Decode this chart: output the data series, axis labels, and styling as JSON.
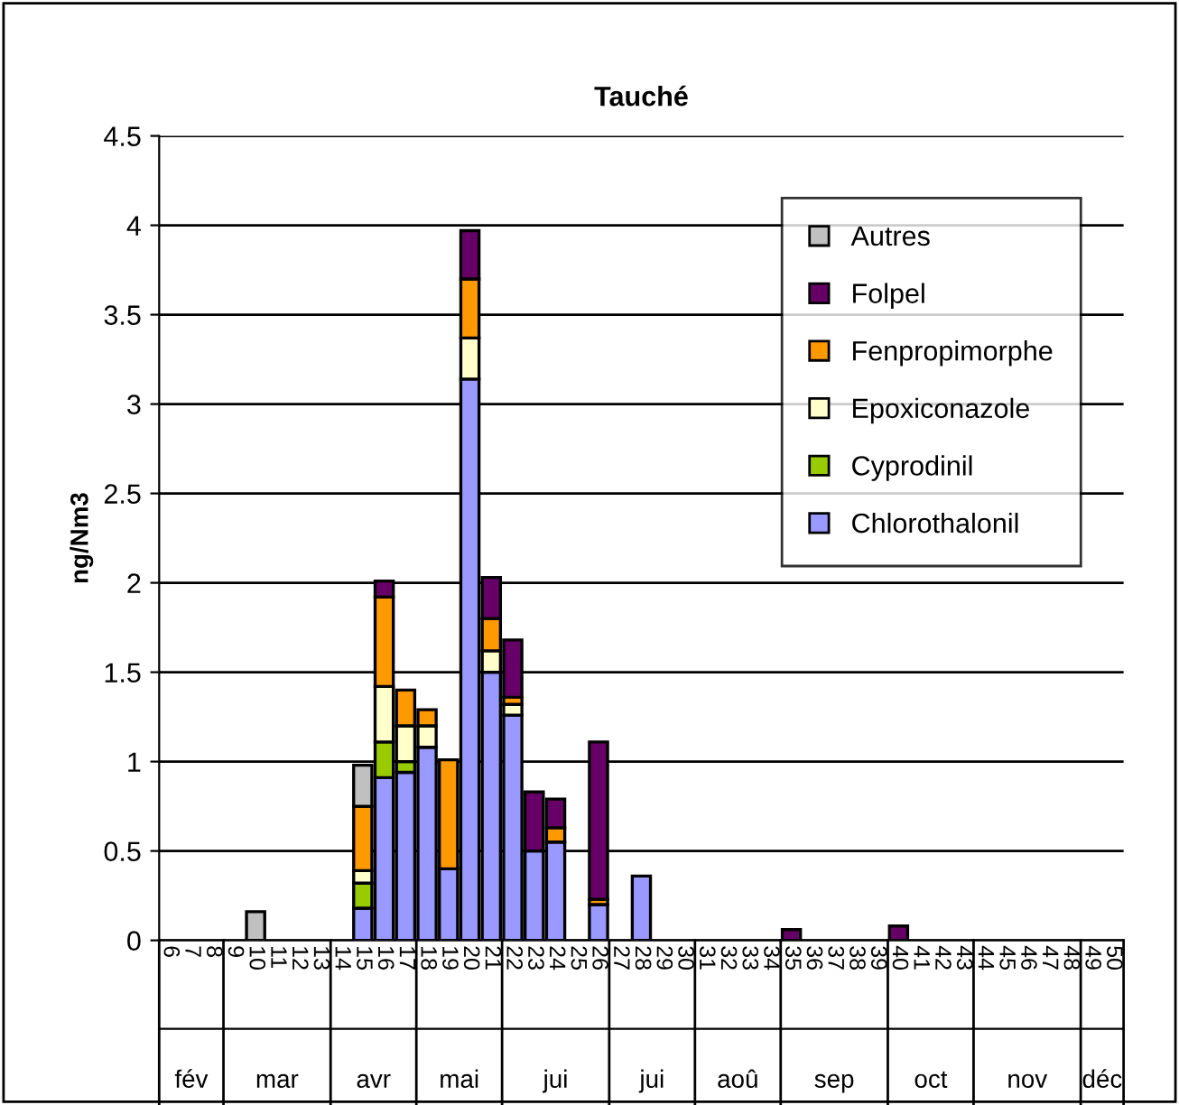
{
  "chart_data": {
    "type": "bar",
    "stacked": true,
    "title": "Tauché",
    "ylabel": "ng/Nm3",
    "categories": [
      "6",
      "7",
      "8",
      "9",
      "10",
      "11",
      "12",
      "13",
      "14",
      "15",
      "16",
      "17",
      "18",
      "19",
      "20",
      "21",
      "22",
      "23",
      "24",
      "25",
      "26",
      "27",
      "28",
      "29",
      "30",
      "31",
      "32",
      "33",
      "34",
      "35",
      "36",
      "37",
      "38",
      "39",
      "40",
      "41",
      "42",
      "43",
      "44",
      "45",
      "46",
      "47",
      "48",
      "49",
      "50"
    ],
    "series": [
      {
        "name": "Chlorothalonil",
        "color": "#9999ff",
        "values": [
          null,
          null,
          null,
          null,
          null,
          null,
          null,
          null,
          null,
          0.18,
          0.91,
          0.94,
          1.08,
          0.4,
          3.14,
          1.5,
          1.26,
          0.5,
          0.55,
          null,
          0.2,
          null,
          0.36,
          null,
          null,
          null,
          null,
          null,
          null,
          null,
          null,
          null,
          null,
          null,
          null,
          null,
          null,
          null,
          null,
          null,
          null,
          null,
          null,
          null,
          null
        ]
      },
      {
        "name": "Cyprodinil",
        "color": "#99cc00",
        "values": [
          null,
          null,
          null,
          null,
          null,
          null,
          null,
          null,
          null,
          0.14,
          0.2,
          0.06,
          null,
          null,
          null,
          null,
          null,
          null,
          null,
          null,
          null,
          null,
          null,
          null,
          null,
          null,
          null,
          null,
          null,
          null,
          null,
          null,
          null,
          null,
          null,
          null,
          null,
          null,
          null,
          null,
          null,
          null,
          null,
          null,
          null
        ]
      },
      {
        "name": "Epoxiconazole",
        "color": "#ffffcc",
        "values": [
          null,
          null,
          null,
          null,
          null,
          null,
          null,
          null,
          null,
          0.07,
          0.31,
          0.2,
          0.12,
          null,
          0.23,
          0.12,
          0.06,
          null,
          null,
          null,
          null,
          null,
          null,
          null,
          null,
          null,
          null,
          null,
          null,
          null,
          null,
          null,
          null,
          null,
          null,
          null,
          null,
          null,
          null,
          null,
          null,
          null,
          null,
          null,
          null
        ]
      },
      {
        "name": "Fenpropimorphe",
        "color": "#ff9900",
        "values": [
          null,
          null,
          null,
          null,
          null,
          null,
          null,
          null,
          null,
          0.36,
          0.5,
          0.2,
          0.09,
          0.61,
          0.33,
          0.18,
          0.04,
          null,
          0.08,
          null,
          0.03,
          null,
          null,
          null,
          null,
          null,
          null,
          null,
          null,
          null,
          null,
          null,
          null,
          null,
          null,
          null,
          null,
          null,
          null,
          null,
          null,
          null,
          null,
          null,
          null
        ]
      },
      {
        "name": "Folpel",
        "color": "#660066",
        "values": [
          null,
          null,
          null,
          null,
          null,
          null,
          null,
          null,
          null,
          null,
          0.09,
          null,
          null,
          null,
          0.27,
          0.23,
          0.32,
          0.33,
          0.16,
          null,
          0.88,
          null,
          null,
          null,
          null,
          null,
          null,
          null,
          null,
          0.06,
          null,
          null,
          null,
          null,
          0.08,
          null,
          null,
          null,
          null,
          null,
          null,
          null,
          null,
          null,
          null
        ]
      },
      {
        "name": "Autres",
        "color": "#c0c0c0",
        "values": [
          null,
          null,
          null,
          null,
          0.16,
          null,
          null,
          null,
          null,
          0.23,
          null,
          null,
          null,
          null,
          null,
          null,
          null,
          null,
          null,
          null,
          null,
          null,
          null,
          null,
          null,
          null,
          null,
          null,
          null,
          null,
          null,
          null,
          null,
          null,
          null,
          null,
          null,
          null,
          null,
          null,
          null,
          null,
          null,
          null,
          null
        ]
      }
    ],
    "ylim": [
      0,
      4.5
    ],
    "yticks": [
      0,
      0.5,
      1,
      1.5,
      2,
      2.5,
      3,
      3.5,
      4,
      4.5
    ],
    "grid": "y",
    "legend": "top right",
    "annotations": [
      "fév",
      "mar",
      "avr",
      "mai",
      "jui",
      "jui",
      "aoû",
      "sep",
      "oct",
      "nov",
      "déc"
    ]
  }
}
